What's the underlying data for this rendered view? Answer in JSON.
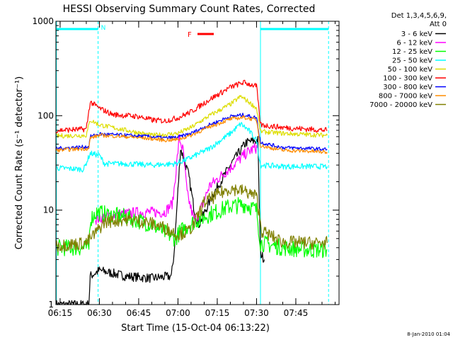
{
  "chart_data": {
    "type": "line",
    "title": "HESSI Observing Summary Count Rates, Corrected",
    "xlabel": "Start Time (15-Oct-04 06:13:22)",
    "ylabel": "Corrected Count Rate (s⁻¹ detector⁻¹)",
    "yscale": "log",
    "ylim": [
      1,
      1000
    ],
    "xlim_minutes": [
      373.4,
      481.5
    ],
    "x_unit": "minutes since 00:00 UT",
    "x_ticks": [
      {
        "label": "06:15",
        "value": 375
      },
      {
        "label": "06:30",
        "value": 390
      },
      {
        "label": "06:45",
        "value": 405
      },
      {
        "label": "07:00",
        "value": 420
      },
      {
        "label": "07:15",
        "value": 435
      },
      {
        "label": "07:30",
        "value": 450
      },
      {
        "label": "07:45",
        "value": 465
      }
    ],
    "y_ticks": [
      {
        "label": "1",
        "value": 1
      },
      {
        "label": "10",
        "value": 10
      },
      {
        "label": "100",
        "value": 100
      },
      {
        "label": "1000",
        "value": 1000
      }
    ],
    "legend_header": [
      "Det 1,3,4,5,6,9,",
      "Att 0"
    ],
    "legend_position": "right",
    "series": [
      {
        "name": "3 - 6 keV",
        "color": "#000000",
        "x": [
          373.4,
          386,
          386.5,
          390,
          400,
          410,
          417.5,
          418.5,
          421,
          424,
          426.5,
          428,
          433,
          440,
          446,
          450.5,
          451.5,
          453
        ],
        "y": [
          1,
          1,
          2,
          2.3,
          2,
          1.9,
          2,
          3.5,
          45,
          24,
          9,
          7,
          14,
          30,
          52,
          55,
          3.5,
          3
        ]
      },
      {
        "name": "6 - 12 keV",
        "color": "#ff00ff",
        "x": [
          388.5,
          395,
          405,
          415,
          418,
          420.5,
          422,
          423.5,
          426,
          428,
          432,
          440,
          446,
          449,
          450.5
        ],
        "y": [
          8,
          8.8,
          9.5,
          9.5,
          12,
          58,
          42,
          15,
          8,
          9,
          18,
          28,
          40,
          45,
          46
        ]
      },
      {
        "name": "12 - 25 keV",
        "color": "#00ff00",
        "x": [
          373.4,
          386,
          386.5,
          389,
          393,
          400,
          410,
          419,
          421,
          426,
          432,
          440,
          446,
          450,
          451.5,
          460,
          470,
          477
        ],
        "y": [
          4,
          4,
          8,
          9.5,
          9,
          8.5,
          7,
          5,
          6,
          7.5,
          9,
          11,
          11.5,
          10,
          4.5,
          4,
          3.8,
          3.8
        ]
      },
      {
        "name": "25 - 50 keV",
        "color": "#00ffff",
        "x": [
          373.4,
          384,
          386.5,
          390,
          392,
          400,
          410,
          419,
          424,
          432,
          440,
          444,
          447,
          450,
          451.5,
          460,
          470,
          477
        ],
        "y": [
          28,
          27,
          40,
          38,
          31,
          31,
          30,
          31,
          35,
          45,
          65,
          82,
          70,
          55,
          30,
          29,
          29,
          29
        ]
      },
      {
        "name": "50 - 100 keV",
        "color": "#dddd00",
        "x": [
          373.4,
          385,
          386.5,
          390,
          395,
          405,
          410,
          415,
          420,
          425,
          432,
          440,
          444,
          447,
          450,
          451.5,
          460,
          470,
          477
        ],
        "y": [
          61,
          62,
          90,
          80,
          75,
          66,
          62,
          63,
          65,
          75,
          100,
          132,
          160,
          140,
          120,
          68,
          65,
          63,
          62
        ]
      },
      {
        "name": "100 - 300 keV",
        "color": "#ff0000",
        "x": [
          373.4,
          385,
          386.5,
          390,
          395,
          405,
          410,
          415,
          420,
          425,
          432,
          440,
          445,
          450,
          451.5,
          460,
          470,
          477
        ],
        "y": [
          70,
          72,
          140,
          120,
          103,
          98,
          90,
          88,
          95,
          110,
          148,
          200,
          225,
          205,
          80,
          75,
          72,
          70
        ]
      },
      {
        "name": "300 - 800 keV",
        "color": "#0000ff",
        "x": [
          373.4,
          386,
          386.5,
          390,
          400,
          410,
          415,
          420,
          425,
          432,
          440,
          445,
          450,
          451.5,
          460,
          470,
          477
        ],
        "y": [
          45,
          47,
          60,
          64,
          62,
          60,
          58,
          59,
          65,
          80,
          98,
          102,
          95,
          52,
          46,
          45,
          44
        ]
      },
      {
        "name": "800 - 7000 keV",
        "color": "#ff8c00",
        "x": [
          373.4,
          386,
          386.5,
          390,
          400,
          410,
          415,
          420,
          425,
          432,
          440,
          445,
          450,
          451.5,
          460,
          470,
          477
        ],
        "y": [
          43,
          45,
          58,
          62,
          60,
          57,
          55,
          56,
          62,
          76,
          92,
          96,
          90,
          48,
          43,
          42,
          41
        ]
      },
      {
        "name": "7000 - 20000 keV",
        "color": "#808000",
        "x": [
          373.4,
          385,
          388,
          392,
          400,
          408,
          415,
          420,
          424,
          426,
          430,
          436,
          440,
          445,
          450,
          452,
          460,
          470,
          477
        ],
        "y": [
          4.2,
          4.5,
          5.5,
          7.5,
          8,
          7.5,
          6.5,
          5.5,
          6,
          7,
          12,
          15,
          17,
          16,
          14,
          6,
          4.6,
          4.5,
          4.5
        ]
      }
    ],
    "annotations": [
      {
        "label": "N",
        "kind": "night",
        "x_start": 373.4,
        "x_end": 389.5,
        "color": "#00ffff"
      },
      {
        "label": "",
        "kind": "night",
        "x_start": 451.5,
        "x_end": 477.5,
        "color": "#00ffff"
      },
      {
        "label": "F",
        "kind": "flare",
        "color": "#ff0000"
      }
    ],
    "vertical_lines": [
      {
        "x": 373.6,
        "style": "solid",
        "color": "#00ffff"
      },
      {
        "x": 389.5,
        "style": "dashed",
        "color": "#00ffff"
      },
      {
        "x": 451.5,
        "style": "solid",
        "color": "#00ffff"
      },
      {
        "x": 477.5,
        "style": "dashed",
        "color": "#00ffff"
      }
    ],
    "footer": "8-Jan-2010 01:04"
  }
}
